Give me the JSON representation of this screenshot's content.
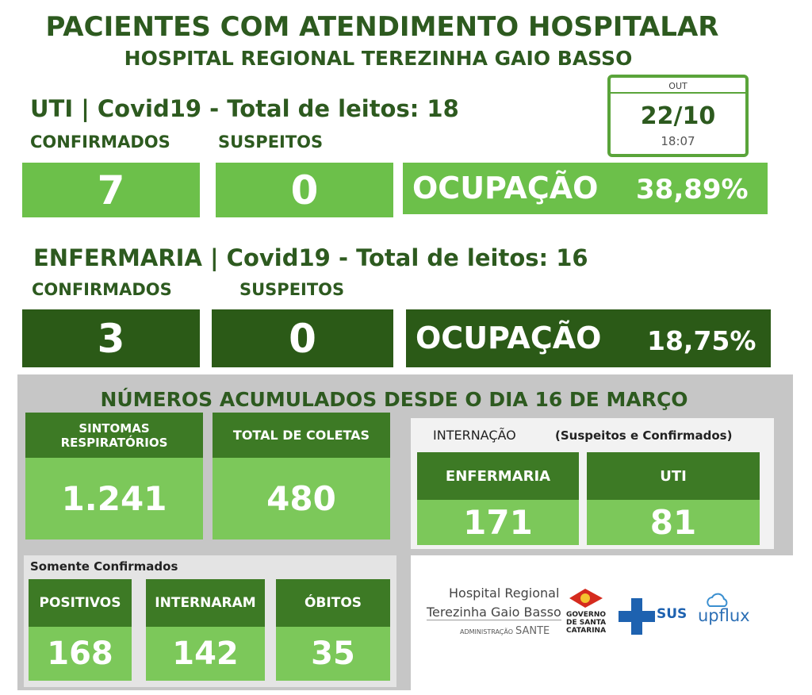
{
  "header": {
    "title": "PACIENTES COM ATENDIMENTO HOSPITALAR",
    "subtitle": "HOSPITAL REGIONAL TEREZINHA GAIO BASSO"
  },
  "date": {
    "month": "OUT",
    "day": "22/10",
    "time": "18:07"
  },
  "uti": {
    "heading": "UTI | Covid19 - Total de leitos: 18",
    "confirmed_label": "CONFIRMADOS",
    "confirmed": "7",
    "suspect_label": "SUSPEITOS",
    "suspect": "0",
    "occupancy_label": "OCUPAÇÃO",
    "occupancy": "38,89%"
  },
  "ward": {
    "heading": "ENFERMARIA | Covid19 - Total de leitos: 16",
    "confirmed_label": "CONFIRMADOS",
    "confirmed": "3",
    "suspect_label": "SUSPEITOS",
    "suspect": "0",
    "occupancy_label": "OCUPAÇÃO",
    "occupancy": "18,75%"
  },
  "cumulative": {
    "heading": "NÚMEROS ACUMULADOS DESDE O DIA 16 DE MARÇO",
    "symptoms": {
      "label": "SINTOMAS RESPIRATÓRIOS",
      "value": "1.241"
    },
    "samples": {
      "label": "TOTAL DE COLETAS",
      "value": "480"
    },
    "hospitalization": {
      "label": "INTERNAÇÃO",
      "note": "(Suspeitos e Confirmados)",
      "ward": {
        "label": "ENFERMARIA",
        "value": "171"
      },
      "icu": {
        "label": "UTI",
        "value": "81"
      }
    },
    "confirmed_only": {
      "label": "Somente Confirmados",
      "positive": {
        "label": "POSITIVOS",
        "value": "168"
      },
      "hospitalized": {
        "label": "INTERNARAM",
        "value": "142"
      },
      "deaths": {
        "label": "ÓBITOS",
        "value": "35"
      }
    }
  },
  "logos": {
    "hospital_line1": "Hospital Regional",
    "hospital_line2": "Terezinha Gaio Basso",
    "admin": "ADMINISTRAÇÃO",
    "sante": "SANTE",
    "gov": "GOVERNO DE SANTA CATARINA",
    "sus": "SUS",
    "upflux": "upflux"
  }
}
